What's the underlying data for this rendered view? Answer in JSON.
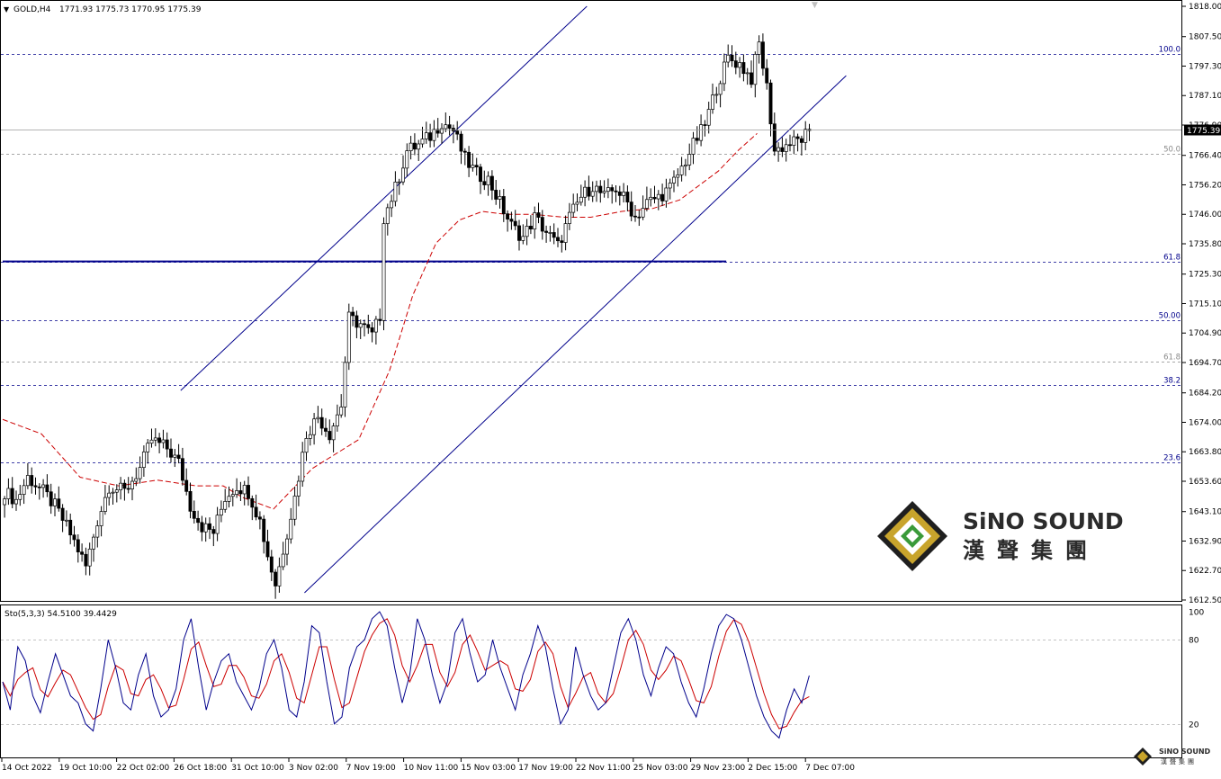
{
  "header": {
    "symbol": "GOLD,H4",
    "ohlc": "1771.93 1775.73 1770.95 1775.39"
  },
  "colors": {
    "bull_body": "#ffffff",
    "bear_body": "#000000",
    "candle_outline": "#000000",
    "channel": "#00008b",
    "ma": "#cc0000",
    "support": "#00008b",
    "fib_blue": "#00008b",
    "fib_gray": "#8a8a8a",
    "stoch_k": "#00008b",
    "stoch_d": "#cc0000",
    "current_price_bg": "#000000"
  },
  "price_axis": {
    "ticks": [
      "1818.00",
      "1807.50",
      "1797.30",
      "1787.10",
      "1776.90",
      "1766.40",
      "1756.20",
      "1746.00",
      "1735.80",
      "1725.30",
      "1715.10",
      "1704.90",
      "1694.70",
      "1684.20",
      "1674.00",
      "1663.80",
      "1653.60",
      "1643.10",
      "1632.90",
      "1622.70",
      "1612.50"
    ],
    "current_price": "1775.39"
  },
  "time_axis": {
    "labels": [
      "14 Oct 2022",
      "19 Oct 10:00",
      "22 Oct 02:00",
      "26 Oct 18:00",
      "31 Oct 10:00",
      "3 Nov 02:00",
      "7 Nov 19:00",
      "10 Nov 11:00",
      "15 Nov 03:00",
      "17 Nov 19:00",
      "22 Nov 11:00",
      "25 Nov 03:00",
      "29 Nov 23:00",
      "2 Dec 15:00",
      "7 Dec 07:00"
    ]
  },
  "fib_levels": [
    {
      "label": "100.0",
      "price": 1801.6,
      "style": "blue"
    },
    {
      "label": "50.0",
      "price": 1767.0,
      "style": "gray"
    },
    {
      "label": "61.8",
      "price": 1729.7,
      "style": "blue"
    },
    {
      "label": "50.00",
      "price": 1709.2,
      "style": "blue"
    },
    {
      "label": "61.8",
      "price": 1694.9,
      "style": "gray"
    },
    {
      "label": "38.2",
      "price": 1686.9,
      "style": "blue"
    },
    {
      "label": "23.6",
      "price": 1660.0,
      "style": "blue"
    }
  ],
  "stochastic": {
    "label": "Sto(5,3,3) 54.5100 39.4429",
    "levels": [
      "100",
      "80",
      "20"
    ],
    "k_last": 54.51,
    "d_last": 39.4429
  },
  "brand": {
    "name": "SiNO SOUND",
    "chinese": "漢聲集團"
  },
  "chart_data": {
    "type": "candlestick",
    "symbol": "GOLD",
    "timeframe": "H4",
    "ylim": [
      1612.5,
      1818.0
    ],
    "x_labels": [
      "14 Oct 2022",
      "19 Oct 10:00",
      "22 Oct 02:00",
      "26 Oct 18:00",
      "31 Oct 10:00",
      "3 Nov 02:00",
      "7 Nov 19:00",
      "10 Nov 11:00",
      "15 Nov 03:00",
      "17 Nov 19:00",
      "22 Nov 11:00",
      "25 Nov 03:00",
      "29 Nov 23:00",
      "2 Dec 15:00",
      "7 Dec 07:00"
    ],
    "close_path": [
      [
        0,
        1650
      ],
      [
        3,
        1647
      ],
      [
        6,
        1655
      ],
      [
        10,
        1650
      ],
      [
        13,
        1645
      ],
      [
        16,
        1638
      ],
      [
        19,
        1630
      ],
      [
        21,
        1624
      ],
      [
        24,
        1640
      ],
      [
        27,
        1652
      ],
      [
        31,
        1650
      ],
      [
        35,
        1658
      ],
      [
        38,
        1668
      ],
      [
        42,
        1665
      ],
      [
        45,
        1660
      ],
      [
        48,
        1645
      ],
      [
        51,
        1638
      ],
      [
        54,
        1636
      ],
      [
        57,
        1648
      ],
      [
        60,
        1652
      ],
      [
        63,
        1650
      ],
      [
        66,
        1640
      ],
      [
        68,
        1628
      ],
      [
        70,
        1618
      ],
      [
        72,
        1630
      ],
      [
        75,
        1648
      ],
      [
        78,
        1670
      ],
      [
        81,
        1676
      ],
      [
        84,
        1670
      ],
      [
        87,
        1680
      ],
      [
        89,
        1710
      ],
      [
        92,
        1708
      ],
      [
        95,
        1704
      ],
      [
        97,
        1711
      ],
      [
        98,
        1745
      ],
      [
        101,
        1755
      ],
      [
        104,
        1768
      ],
      [
        107,
        1770
      ],
      [
        110,
        1773
      ],
      [
        113,
        1778
      ],
      [
        116,
        1775
      ],
      [
        119,
        1765
      ],
      [
        122,
        1760
      ],
      [
        125,
        1758
      ],
      [
        128,
        1750
      ],
      [
        131,
        1742
      ],
      [
        134,
        1738
      ],
      [
        137,
        1745
      ],
      [
        140,
        1740
      ],
      [
        143,
        1735
      ],
      [
        146,
        1745
      ],
      [
        149,
        1752
      ],
      [
        152,
        1756
      ],
      [
        155,
        1752
      ],
      [
        158,
        1755
      ],
      [
        161,
        1750
      ],
      [
        163,
        1745
      ],
      [
        166,
        1750
      ],
      [
        169,
        1752
      ],
      [
        172,
        1755
      ],
      [
        175,
        1762
      ],
      [
        178,
        1770
      ],
      [
        181,
        1777
      ],
      [
        184,
        1790
      ],
      [
        187,
        1800
      ],
      [
        190,
        1798
      ],
      [
        193,
        1793
      ],
      [
        195,
        1805
      ],
      [
        197,
        1790
      ],
      [
        199,
        1768
      ],
      [
        202,
        1770
      ],
      [
        204,
        1771
      ],
      [
        206,
        1772
      ],
      [
        208,
        1775
      ]
    ],
    "moving_average": [
      [
        0,
        1675
      ],
      [
        10,
        1670
      ],
      [
        20,
        1655
      ],
      [
        30,
        1652
      ],
      [
        40,
        1654
      ],
      [
        50,
        1652
      ],
      [
        57,
        1652
      ],
      [
        62,
        1648
      ],
      [
        70,
        1644
      ],
      [
        80,
        1658
      ],
      [
        92,
        1668
      ],
      [
        100,
        1692
      ],
      [
        106,
        1718
      ],
      [
        112,
        1736
      ],
      [
        118,
        1744
      ],
      [
        124,
        1747
      ],
      [
        130,
        1746
      ],
      [
        137,
        1746
      ],
      [
        145,
        1745
      ],
      [
        152,
        1745
      ],
      [
        160,
        1747
      ],
      [
        168,
        1748
      ],
      [
        175,
        1751
      ],
      [
        180,
        1756
      ],
      [
        185,
        1761
      ],
      [
        190,
        1768
      ],
      [
        195,
        1774
      ]
    ],
    "channel_upper": [
      [
        46,
        1685
      ],
      [
        151,
        1818
      ]
    ],
    "channel_lower": [
      [
        78,
        1615
      ],
      [
        218,
        1794
      ]
    ],
    "support_line": {
      "price": 1729.7,
      "from_bar": 0,
      "to_bar": 187
    },
    "stochastic_k": [
      50,
      30,
      75,
      65,
      40,
      28,
      50,
      70,
      55,
      40,
      35,
      20,
      15,
      45,
      80,
      60,
      35,
      30,
      55,
      70,
      40,
      25,
      30,
      45,
      80,
      95,
      60,
      30,
      50,
      65,
      70,
      50,
      40,
      30,
      45,
      70,
      80,
      60,
      30,
      25,
      50,
      90,
      85,
      50,
      20,
      25,
      60,
      75,
      80,
      95,
      100,
      90,
      60,
      35,
      55,
      95,
      80,
      55,
      35,
      50,
      85,
      95,
      70,
      50,
      55,
      80,
      60,
      45,
      30,
      55,
      70,
      90,
      75,
      45,
      20,
      30,
      75,
      55,
      40,
      30,
      35,
      60,
      85,
      95,
      80,
      55,
      40,
      60,
      75,
      70,
      50,
      35,
      25,
      45,
      70,
      90,
      98,
      95,
      80,
      60,
      40,
      25,
      15,
      10,
      30,
      45,
      35,
      55
    ]
  }
}
